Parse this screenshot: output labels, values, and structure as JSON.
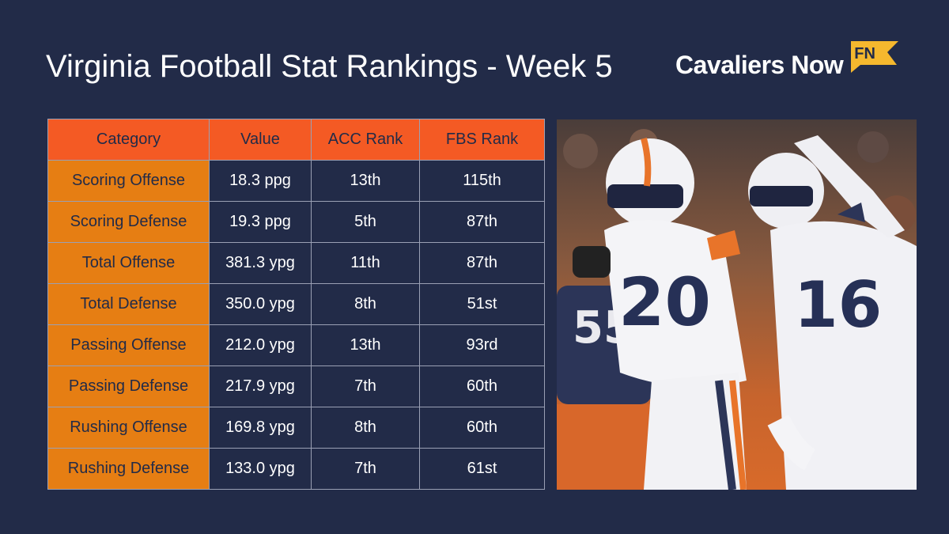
{
  "title": "Virginia Football Stat Rankings - Week 5",
  "brand": {
    "name": "Cavaliers Now",
    "badge": "FN",
    "badge_color": "#f5b82e"
  },
  "colors": {
    "background": "#222b48",
    "header_orange": "#f45a24",
    "category_orange": "#e67e13"
  },
  "table": {
    "headers": [
      "Category",
      "Value",
      "ACC Rank",
      "FBS Rank"
    ],
    "rows": [
      [
        "Scoring Offense",
        "18.3 ppg",
        "13th",
        "115th"
      ],
      [
        "Scoring Defense",
        "19.3 ppg",
        "5th",
        "87th"
      ],
      [
        "Total Offense",
        "381.3 ypg",
        "11th",
        "87th"
      ],
      [
        "Total Defense",
        "350.0 ypg",
        "8th",
        "51st"
      ],
      [
        "Passing Offense",
        "212.0 ypg",
        "13th",
        "93rd"
      ],
      [
        "Passing Defense",
        "217.9 ypg",
        "7th",
        "60th"
      ],
      [
        "Rushing Offense",
        "169.8 ypg",
        "8th",
        "60th"
      ],
      [
        "Rushing Defense",
        "133.0 ypg",
        "7th",
        "61st"
      ]
    ]
  },
  "photo": {
    "jersey_numbers": [
      "20",
      "16",
      "55"
    ]
  }
}
